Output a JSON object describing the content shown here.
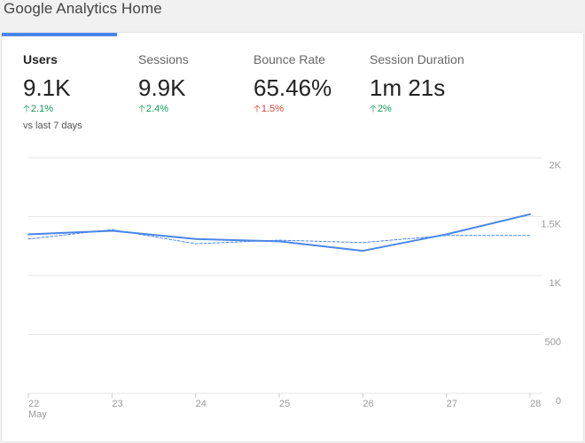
{
  "page": {
    "title": "Google Analytics Home"
  },
  "metrics": [
    {
      "label": "Users",
      "value": "9.1K",
      "change": "2.1%",
      "trend": "up",
      "sentiment": "positive"
    },
    {
      "label": "Sessions",
      "value": "9.9K",
      "change": "2.4%",
      "trend": "up",
      "sentiment": "positive"
    },
    {
      "label": "Bounce Rate",
      "value": "65.46%",
      "change": "1.5%",
      "trend": "up",
      "sentiment": "negative"
    },
    {
      "label": "Session Duration",
      "value": "1m 21s",
      "change": "2%",
      "trend": "up",
      "sentiment": "positive"
    }
  ],
  "comparison_note": "vs last 7 days",
  "icons": {
    "trend_up": "arrow-up-icon"
  },
  "colors": {
    "accent": "#4a86e8",
    "positive": "#0f9d58",
    "negative": "#db4437"
  },
  "chart_data": {
    "type": "line",
    "x": [
      "22",
      "23",
      "24",
      "25",
      "26",
      "27",
      "28"
    ],
    "x_sublabel": "May",
    "ylim": [
      0,
      2000
    ],
    "y_ticks": [
      {
        "value": 2000,
        "label": "2K"
      },
      {
        "value": 1500,
        "label": "1.5K"
      },
      {
        "value": 1000,
        "label": "1K"
      },
      {
        "value": 500,
        "label": "500"
      },
      {
        "value": 0,
        "label": "0"
      }
    ],
    "series": [
      {
        "style": "solid",
        "values": [
          1350,
          1380,
          1310,
          1290,
          1210,
          1350,
          1520
        ]
      },
      {
        "style": "dashed",
        "values": [
          1310,
          1390,
          1270,
          1300,
          1280,
          1340,
          1340
        ]
      }
    ],
    "grid": true
  }
}
